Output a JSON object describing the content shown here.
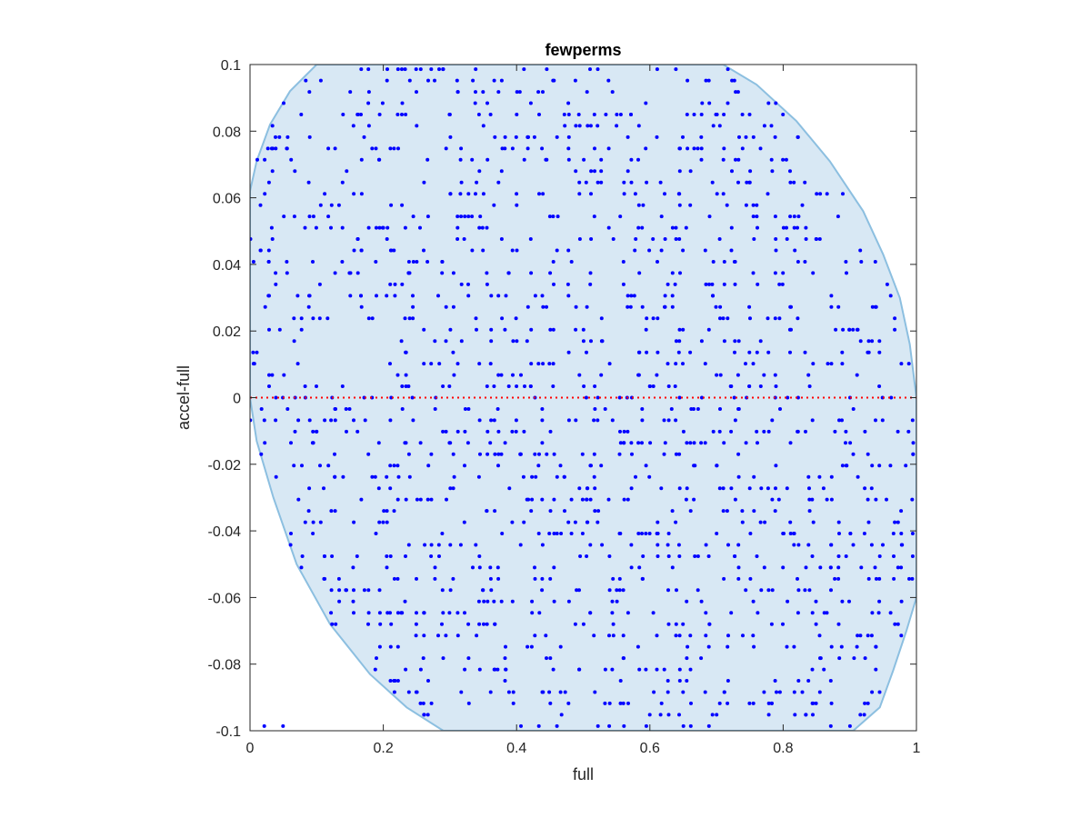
{
  "chart_data": {
    "type": "scatter",
    "title": "fewperms",
    "xlabel": "full",
    "ylabel": "accel-full",
    "xlim": [
      0,
      1
    ],
    "ylim": [
      -0.1,
      0.1
    ],
    "xticks": [
      "0",
      "0.2",
      "0.4",
      "0.6",
      "0.8",
      "1"
    ],
    "yticks": [
      "-0.1",
      "-0.08",
      "-0.06",
      "-0.04",
      "-0.02",
      "0",
      "0.02",
      "0.04",
      "0.06",
      "0.08",
      "0.1"
    ],
    "grid": false,
    "legend": "none",
    "point_count_estimate": 1500,
    "reference_line": {
      "y": 0,
      "style": "dotted",
      "color": "#ff0000"
    },
    "envelope": {
      "description": "shaded region containing the scatter",
      "outline": [
        [
          0.0,
          0.062
        ],
        [
          0.01,
          0.071
        ],
        [
          0.03,
          0.082
        ],
        [
          0.06,
          0.092
        ],
        [
          0.1,
          0.1
        ],
        [
          0.71,
          0.1
        ],
        [
          0.76,
          0.094
        ],
        [
          0.82,
          0.083
        ],
        [
          0.87,
          0.071
        ],
        [
          0.92,
          0.056
        ],
        [
          0.95,
          0.043
        ],
        [
          0.975,
          0.03
        ],
        [
          0.99,
          0.016
        ],
        [
          1.0,
          0.0
        ],
        [
          1.0,
          -0.06
        ],
        [
          0.985,
          -0.07
        ],
        [
          0.965,
          -0.082
        ],
        [
          0.945,
          -0.093
        ],
        [
          0.905,
          -0.1
        ],
        [
          0.29,
          -0.1
        ],
        [
          0.235,
          -0.093
        ],
        [
          0.18,
          -0.083
        ],
        [
          0.12,
          -0.068
        ],
        [
          0.07,
          -0.05
        ],
        [
          0.035,
          -0.03
        ],
        [
          0.01,
          -0.013
        ],
        [
          0.0,
          0.0
        ]
      ],
      "fill": "#d8e8f4",
      "edge": "#8cbfe0"
    },
    "series": [
      {
        "color": "#0000ff",
        "marker": "dot"
      }
    ]
  },
  "colors": {
    "axis": "#262626",
    "points": "#0000ff",
    "zero_line": "#ff0000",
    "envelope_fill": "#d8e8f4",
    "envelope_edge": "#8cbfe0"
  }
}
